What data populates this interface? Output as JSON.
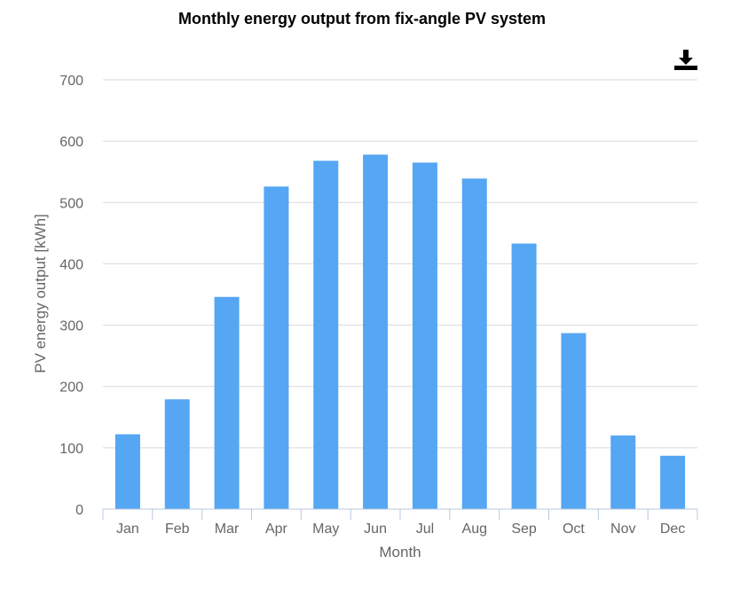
{
  "chart_data": {
    "type": "bar",
    "title": "Monthly energy output from fix-angle PV system",
    "xlabel": "Month",
    "ylabel": "PV energy output [kWh]",
    "categories": [
      "Jan",
      "Feb",
      "Mar",
      "Apr",
      "May",
      "Jun",
      "Jul",
      "Aug",
      "Sep",
      "Oct",
      "Nov",
      "Dec"
    ],
    "values": [
      122,
      179,
      346,
      526,
      568,
      578,
      565,
      539,
      433,
      287,
      120,
      87
    ],
    "ylim": [
      0,
      700
    ],
    "yticks": [
      0,
      100,
      200,
      300,
      400,
      500,
      600,
      700
    ],
    "grid": true,
    "legend": "none",
    "bar_color": "#55a6f3",
    "gridline_color": "#d9d9d9",
    "axis_color": "#b8c8e0",
    "text_color": "#666666"
  },
  "toolbar": {
    "download_icon": "download-icon"
  }
}
